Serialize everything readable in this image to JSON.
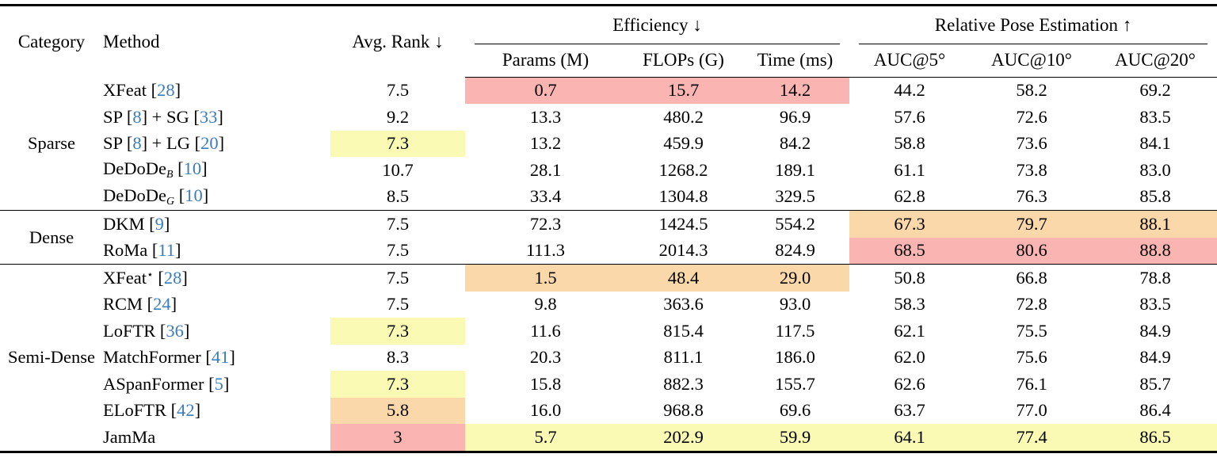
{
  "colors": {
    "highlight_best_red": "#fab4b2",
    "highlight_second_orange": "#fbd8a9",
    "highlight_third_yellow": "#fafab4",
    "citation_blue": "#3b7cba",
    "rule_black": "#000000"
  },
  "table": {
    "headers": {
      "category": "Category",
      "method": "Method",
      "avg_rank": "Avg. Rank ↓",
      "efficiency_group": "Efficiency ↓",
      "pose_group": "Relative Pose Estimation ↑",
      "params": "Params (M)",
      "flops": "FLOPs (G)",
      "time": "Time (ms)",
      "auc5": "AUC@5°",
      "auc10": "AUC@10°",
      "auc20": "AUC@20°"
    },
    "value_columns": [
      "avg-rank",
      "params",
      "flops",
      "time",
      "auc5",
      "auc10",
      "auc20"
    ],
    "highlight_legend": {
      "r": "best",
      "o": "second-best",
      "y": "third-best"
    },
    "groups": [
      {
        "category": "Sparse",
        "rows": [
          {
            "method": [
              [
                "t",
                "XFeat ["
              ],
              [
                "c",
                "28"
              ],
              [
                "t",
                "]"
              ]
            ],
            "values": [
              {
                "v": "7.5"
              },
              {
                "v": "0.7",
                "h": "r"
              },
              {
                "v": "15.7",
                "h": "r"
              },
              {
                "v": "14.2",
                "h": "r"
              },
              {
                "v": "44.2"
              },
              {
                "v": "58.2"
              },
              {
                "v": "69.2"
              }
            ]
          },
          {
            "method": [
              [
                "t",
                "SP ["
              ],
              [
                "c",
                "8"
              ],
              [
                "t",
                "] + SG ["
              ],
              [
                "c",
                "33"
              ],
              [
                "t",
                "]"
              ]
            ],
            "values": [
              {
                "v": "9.2"
              },
              {
                "v": "13.3"
              },
              {
                "v": "480.2"
              },
              {
                "v": "96.9"
              },
              {
                "v": "57.6"
              },
              {
                "v": "72.6"
              },
              {
                "v": "83.5"
              }
            ]
          },
          {
            "method": [
              [
                "t",
                "SP ["
              ],
              [
                "c",
                "8"
              ],
              [
                "t",
                "] + LG ["
              ],
              [
                "c",
                "20"
              ],
              [
                "t",
                "]"
              ]
            ],
            "values": [
              {
                "v": "7.3",
                "h": "y"
              },
              {
                "v": "13.2"
              },
              {
                "v": "459.9"
              },
              {
                "v": "84.2"
              },
              {
                "v": "58.8"
              },
              {
                "v": "73.6"
              },
              {
                "v": "84.1"
              }
            ]
          },
          {
            "method": [
              [
                "t",
                "DeDoDe"
              ],
              [
                "sub",
                "B"
              ],
              [
                "t",
                " ["
              ],
              [
                "c",
                "10"
              ],
              [
                "t",
                "]"
              ]
            ],
            "values": [
              {
                "v": "10.7"
              },
              {
                "v": "28.1"
              },
              {
                "v": "1268.2"
              },
              {
                "v": "189.1"
              },
              {
                "v": "61.1"
              },
              {
                "v": "73.8"
              },
              {
                "v": "83.0"
              }
            ]
          },
          {
            "method": [
              [
                "t",
                "DeDoDe"
              ],
              [
                "sub",
                "G"
              ],
              [
                "t",
                " ["
              ],
              [
                "c",
                "10"
              ],
              [
                "t",
                "]"
              ]
            ],
            "values": [
              {
                "v": "8.5"
              },
              {
                "v": "33.4"
              },
              {
                "v": "1304.8"
              },
              {
                "v": "329.5"
              },
              {
                "v": "62.8"
              },
              {
                "v": "76.3"
              },
              {
                "v": "85.8"
              }
            ]
          }
        ]
      },
      {
        "category": "Dense",
        "rows": [
          {
            "method": [
              [
                "t",
                "DKM ["
              ],
              [
                "c",
                "9"
              ],
              [
                "t",
                "]"
              ]
            ],
            "values": [
              {
                "v": "7.5"
              },
              {
                "v": "72.3"
              },
              {
                "v": "1424.5"
              },
              {
                "v": "554.2"
              },
              {
                "v": "67.3",
                "h": "o"
              },
              {
                "v": "79.7",
                "h": "o"
              },
              {
                "v": "88.1",
                "h": "o"
              }
            ]
          },
          {
            "method": [
              [
                "t",
                "RoMa ["
              ],
              [
                "c",
                "11"
              ],
              [
                "t",
                "]"
              ]
            ],
            "values": [
              {
                "v": "7.5"
              },
              {
                "v": "111.3"
              },
              {
                "v": "2014.3"
              },
              {
                "v": "824.9"
              },
              {
                "v": "68.5",
                "h": "r"
              },
              {
                "v": "80.6",
                "h": "r"
              },
              {
                "v": "88.8",
                "h": "r"
              }
            ]
          }
        ]
      },
      {
        "category": "Semi-Dense",
        "rows": [
          {
            "method": [
              [
                "t",
                "XFeat"
              ],
              [
                "sup",
                "⋆"
              ],
              [
                "t",
                " ["
              ],
              [
                "c",
                "28"
              ],
              [
                "t",
                "]"
              ]
            ],
            "values": [
              {
                "v": "7.5"
              },
              {
                "v": "1.5",
                "h": "o"
              },
              {
                "v": "48.4",
                "h": "o"
              },
              {
                "v": "29.0",
                "h": "o"
              },
              {
                "v": "50.8"
              },
              {
                "v": "66.8"
              },
              {
                "v": "78.8"
              }
            ]
          },
          {
            "method": [
              [
                "t",
                "RCM ["
              ],
              [
                "c",
                "24"
              ],
              [
                "t",
                "]"
              ]
            ],
            "values": [
              {
                "v": "7.5"
              },
              {
                "v": "9.8"
              },
              {
                "v": "363.6"
              },
              {
                "v": "93.0"
              },
              {
                "v": "58.3"
              },
              {
                "v": "72.8"
              },
              {
                "v": "83.5"
              }
            ]
          },
          {
            "method": [
              [
                "t",
                "LoFTR ["
              ],
              [
                "c",
                "36"
              ],
              [
                "t",
                "]"
              ]
            ],
            "values": [
              {
                "v": "7.3",
                "h": "y"
              },
              {
                "v": "11.6"
              },
              {
                "v": "815.4"
              },
              {
                "v": "117.5"
              },
              {
                "v": "62.1"
              },
              {
                "v": "75.5"
              },
              {
                "v": "84.9"
              }
            ]
          },
          {
            "method": [
              [
                "t",
                "MatchFormer ["
              ],
              [
                "c",
                "41"
              ],
              [
                "t",
                "]"
              ]
            ],
            "values": [
              {
                "v": "8.3"
              },
              {
                "v": "20.3"
              },
              {
                "v": "811.1"
              },
              {
                "v": "186.0"
              },
              {
                "v": "62.0"
              },
              {
                "v": "75.6"
              },
              {
                "v": "84.9"
              }
            ]
          },
          {
            "method": [
              [
                "t",
                "ASpanFormer ["
              ],
              [
                "c",
                "5"
              ],
              [
                "t",
                "]"
              ]
            ],
            "values": [
              {
                "v": "7.3",
                "h": "y"
              },
              {
                "v": "15.8"
              },
              {
                "v": "882.3"
              },
              {
                "v": "155.7"
              },
              {
                "v": "62.6"
              },
              {
                "v": "76.1"
              },
              {
                "v": "85.7"
              }
            ]
          },
          {
            "method": [
              [
                "t",
                "ELoFTR ["
              ],
              [
                "c",
                "42"
              ],
              [
                "t",
                "]"
              ]
            ],
            "values": [
              {
                "v": "5.8",
                "h": "o"
              },
              {
                "v": "16.0"
              },
              {
                "v": "968.8"
              },
              {
                "v": "69.6"
              },
              {
                "v": "63.7"
              },
              {
                "v": "77.0"
              },
              {
                "v": "86.4"
              }
            ]
          },
          {
            "method": [
              [
                "t",
                "JamMa"
              ]
            ],
            "values": [
              {
                "v": "3",
                "h": "r"
              },
              {
                "v": "5.7",
                "h": "y"
              },
              {
                "v": "202.9",
                "h": "y"
              },
              {
                "v": "59.9",
                "h": "y"
              },
              {
                "v": "64.1",
                "h": "y"
              },
              {
                "v": "77.4",
                "h": "y"
              },
              {
                "v": "86.5",
                "h": "y"
              }
            ]
          }
        ]
      }
    ]
  }
}
